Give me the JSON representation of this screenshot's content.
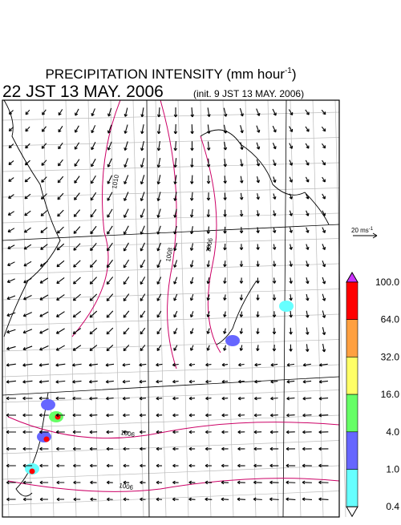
{
  "header": {
    "title": "PRECIPITATION INTENSITY (mm hour",
    "title_superscript": "-1",
    "title_close": ")",
    "valid_time": "22 JST 13 MAY. 2006",
    "init_time": "(init. 9 JST 13 MAY. 2006)"
  },
  "wind_scale": {
    "label": "20 ms",
    "superscript": "-1"
  },
  "isobars": [
    "1010",
    "1008",
    "1006",
    "1006",
    "1006"
  ],
  "colorbar": {
    "labels": [
      "100.0",
      "64.0",
      "32.0",
      "16.0",
      "4.0",
      "1.0",
      "0.4"
    ],
    "colors": [
      "#ff0000",
      "#ffa040",
      "#ffff66",
      "#66ff66",
      "#6666ff",
      "#66ffff"
    ],
    "over_color": "#cc33ff",
    "under_color": "#ffffff"
  }
}
